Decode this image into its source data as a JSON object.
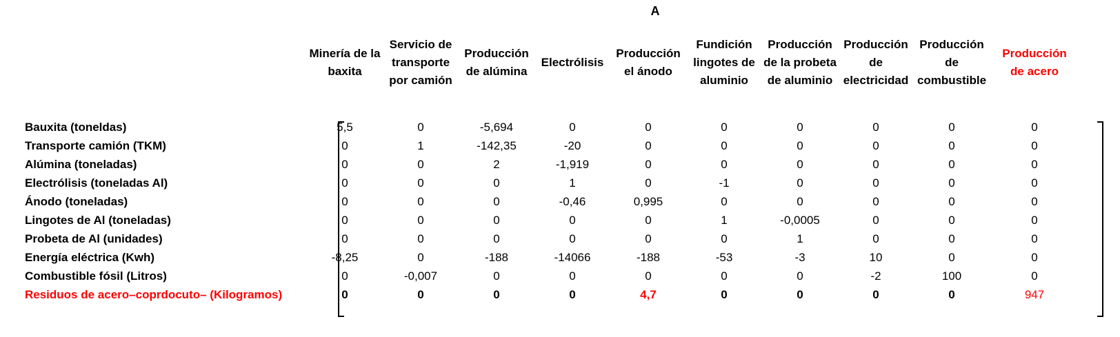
{
  "title": "A",
  "columns": [
    {
      "label": "Minería de la baxita",
      "red": false
    },
    {
      "label": "Servicio de transporte por camión",
      "red": false
    },
    {
      "label": "Producción de alúmina",
      "red": false
    },
    {
      "label": "Electrólisis",
      "red": false
    },
    {
      "label": "Producción el ánodo",
      "red": false
    },
    {
      "label": "Fundición lingotes de aluminio",
      "red": false
    },
    {
      "label": "Producción de la probeta de aluminio",
      "red": false
    },
    {
      "label": "Producción de electricidad",
      "red": false
    },
    {
      "label": "Producción de combustible",
      "red": false
    },
    {
      "label": "Producción de acero",
      "red": true
    }
  ],
  "rows": [
    {
      "label": "Bauxita (toneldas)",
      "values": [
        "5,5",
        "0",
        "-5,694",
        "0",
        "0",
        "0",
        "0",
        "0",
        "0",
        "0"
      ]
    },
    {
      "label": "Transporte camión (TKM)",
      "values": [
        "0",
        "1",
        "-142,35",
        "-20",
        "0",
        "0",
        "0",
        "0",
        "0",
        "0"
      ]
    },
    {
      "label": "Alúmina (toneladas)",
      "values": [
        "0",
        "0",
        "2",
        "-1,919",
        "0",
        "0",
        "0",
        "0",
        "0",
        "0"
      ]
    },
    {
      "label": "Electrólisis (toneladas Al)",
      "values": [
        "0",
        "0",
        "0",
        "1",
        "0",
        "-1",
        "0",
        "0",
        "0",
        "0"
      ]
    },
    {
      "label": "Ánodo (toneladas)",
      "values": [
        "0",
        "0",
        "0",
        "-0,46",
        "0,995",
        "0",
        "0",
        "0",
        "0",
        "0"
      ]
    },
    {
      "label": "Lingotes de Al (toneladas)",
      "values": [
        "0",
        "0",
        "0",
        "0",
        "0",
        "1",
        "-0,0005",
        "0",
        "0",
        "0"
      ]
    },
    {
      "label": "Probeta de Al (unidades)",
      "values": [
        "0",
        "0",
        "0",
        "0",
        "0",
        "0",
        "1",
        "0",
        "0",
        "0"
      ]
    },
    {
      "label": "Energía eléctrica (Kwh)",
      "values": [
        "-8,25",
        "0",
        "-188",
        "-14066",
        "-188",
        "-53",
        "-3",
        "10",
        "0",
        "0"
      ]
    },
    {
      "label": "Combustible fósil (Litros)",
      "values": [
        "0",
        "-0,007",
        "0",
        "0",
        "0",
        "0",
        "0",
        "-2",
        "100",
        "0"
      ]
    },
    {
      "label": "Residuos de acero–coprdocuto– (Kilogramos)",
      "values": [
        "0",
        "0",
        "0",
        "0",
        "4,7",
        "0",
        "0",
        "0",
        "0",
        "947"
      ],
      "red": true
    }
  ],
  "colors": {
    "highlight": "#ff0000",
    "text": "#000000"
  }
}
